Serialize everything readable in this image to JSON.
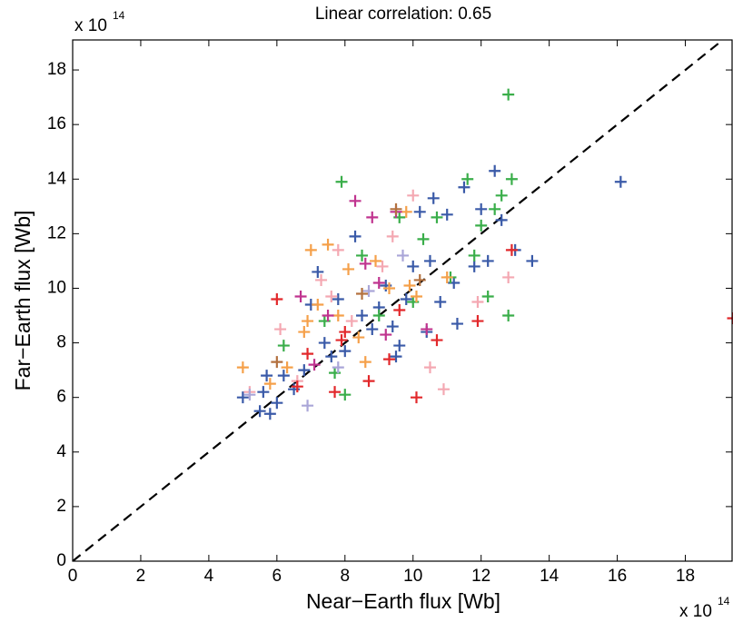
{
  "chart_data": {
    "type": "scatter",
    "title": "Linear correlation: 0.65",
    "x_label": "Near−Earth flux [Wb]",
    "y_label": "Far−Earth flux [Wb]",
    "x_scale_label": {
      "base": "x 10",
      "exponent": "14"
    },
    "y_scale_label": {
      "base": "x 10",
      "exponent": "14"
    },
    "xlim": [
      0,
      19.4
    ],
    "ylim": [
      0,
      19.1
    ],
    "xticks": [
      0,
      2,
      4,
      6,
      8,
      10,
      12,
      14,
      16,
      18
    ],
    "yticks": [
      0,
      2,
      4,
      6,
      8,
      10,
      12,
      14,
      16,
      18
    ],
    "reference_line": "dashed",
    "series": [
      {
        "color": "#3a5aa8",
        "x": [
          5.0,
          5.5,
          5.6,
          5.8,
          5.7,
          6.0,
          6.5,
          6.8,
          7.2,
          7.4,
          7.6,
          7.8,
          8.0,
          8.3,
          8.5,
          8.8,
          9.0,
          9.2,
          9.4,
          9.6,
          9.8,
          10.0,
          10.2,
          10.5,
          10.6,
          10.8,
          11.0,
          11.2,
          11.5,
          11.8,
          12.0,
          12.2,
          12.4,
          12.6,
          13.0,
          13.5,
          16.1,
          6.2,
          7.0,
          9.5,
          10.4,
          11.3
        ],
        "y": [
          6.0,
          5.5,
          6.2,
          5.4,
          6.8,
          5.8,
          6.3,
          7.0,
          10.6,
          8.0,
          7.5,
          9.6,
          7.7,
          11.9,
          9.0,
          8.5,
          9.3,
          10.1,
          8.6,
          7.9,
          9.6,
          10.8,
          12.8,
          11.0,
          13.3,
          9.5,
          12.7,
          10.2,
          13.7,
          10.8,
          12.9,
          11.0,
          14.3,
          12.5,
          11.4,
          11.0,
          13.9,
          6.8,
          9.4,
          7.5,
          8.4,
          8.7
        ]
      },
      {
        "color": "#3aae4a",
        "x": [
          6.2,
          7.4,
          7.9,
          8.0,
          8.5,
          9.0,
          9.6,
          10.3,
          10.7,
          11.6,
          11.8,
          12.0,
          12.4,
          12.6,
          12.8,
          12.9,
          12.8,
          12.2,
          7.7,
          10.0,
          11.1
        ],
        "y": [
          7.9,
          8.8,
          13.9,
          6.1,
          11.2,
          9.0,
          12.6,
          11.8,
          12.6,
          14.0,
          11.2,
          12.3,
          12.9,
          13.4,
          17.1,
          14.0,
          9.0,
          9.7,
          6.9,
          9.5,
          10.4
        ]
      },
      {
        "color": "#f5a04a",
        "x": [
          5.0,
          5.8,
          6.3,
          6.8,
          7.0,
          7.5,
          7.2,
          7.8,
          8.1,
          8.4,
          8.9,
          9.3,
          9.9,
          10.1,
          11.0,
          8.6,
          6.9,
          9.8
        ],
        "y": [
          7.1,
          6.5,
          7.1,
          8.4,
          11.4,
          11.6,
          9.4,
          9.0,
          10.7,
          8.2,
          11.0,
          10.0,
          10.1,
          9.7,
          10.4,
          7.3,
          8.8,
          12.8
        ]
      },
      {
        "color": "#f4a8b2",
        "x": [
          5.2,
          6.1,
          6.6,
          7.3,
          7.6,
          8.2,
          9.1,
          10.0,
          10.9,
          10.5,
          11.9,
          12.8,
          7.8,
          9.4
        ],
        "y": [
          6.2,
          8.5,
          6.6,
          10.3,
          9.7,
          8.8,
          10.8,
          13.4,
          6.3,
          7.1,
          9.5,
          10.4,
          11.4,
          11.9
        ]
      },
      {
        "color": "#c0348f",
        "x": [
          6.7,
          7.5,
          8.3,
          8.6,
          9.0,
          9.2,
          9.5,
          10.4,
          7.1,
          8.8
        ],
        "y": [
          9.7,
          9.0,
          13.2,
          10.9,
          10.2,
          8.3,
          12.8,
          8.5,
          7.2,
          12.6
        ]
      },
      {
        "color": "#e2282b",
        "x": [
          6.0,
          6.6,
          6.9,
          7.7,
          8.0,
          8.7,
          9.3,
          10.1,
          10.7,
          11.9,
          12.9,
          19.4,
          7.9,
          9.6
        ],
        "y": [
          9.6,
          6.4,
          7.6,
          6.2,
          8.4,
          6.6,
          7.4,
          6.0,
          8.1,
          8.8,
          11.4,
          8.9,
          8.1,
          9.2
        ]
      },
      {
        "color": "#aaa6d8",
        "x": [
          5.2,
          6.9,
          7.8,
          8.7,
          9.7
        ],
        "y": [
          6.1,
          5.7,
          7.1,
          9.9,
          11.2
        ]
      },
      {
        "color": "#b3713f",
        "x": [
          8.5,
          9.5,
          10.2,
          6.0
        ],
        "y": [
          9.8,
          12.9,
          10.3,
          7.3
        ]
      }
    ]
  }
}
